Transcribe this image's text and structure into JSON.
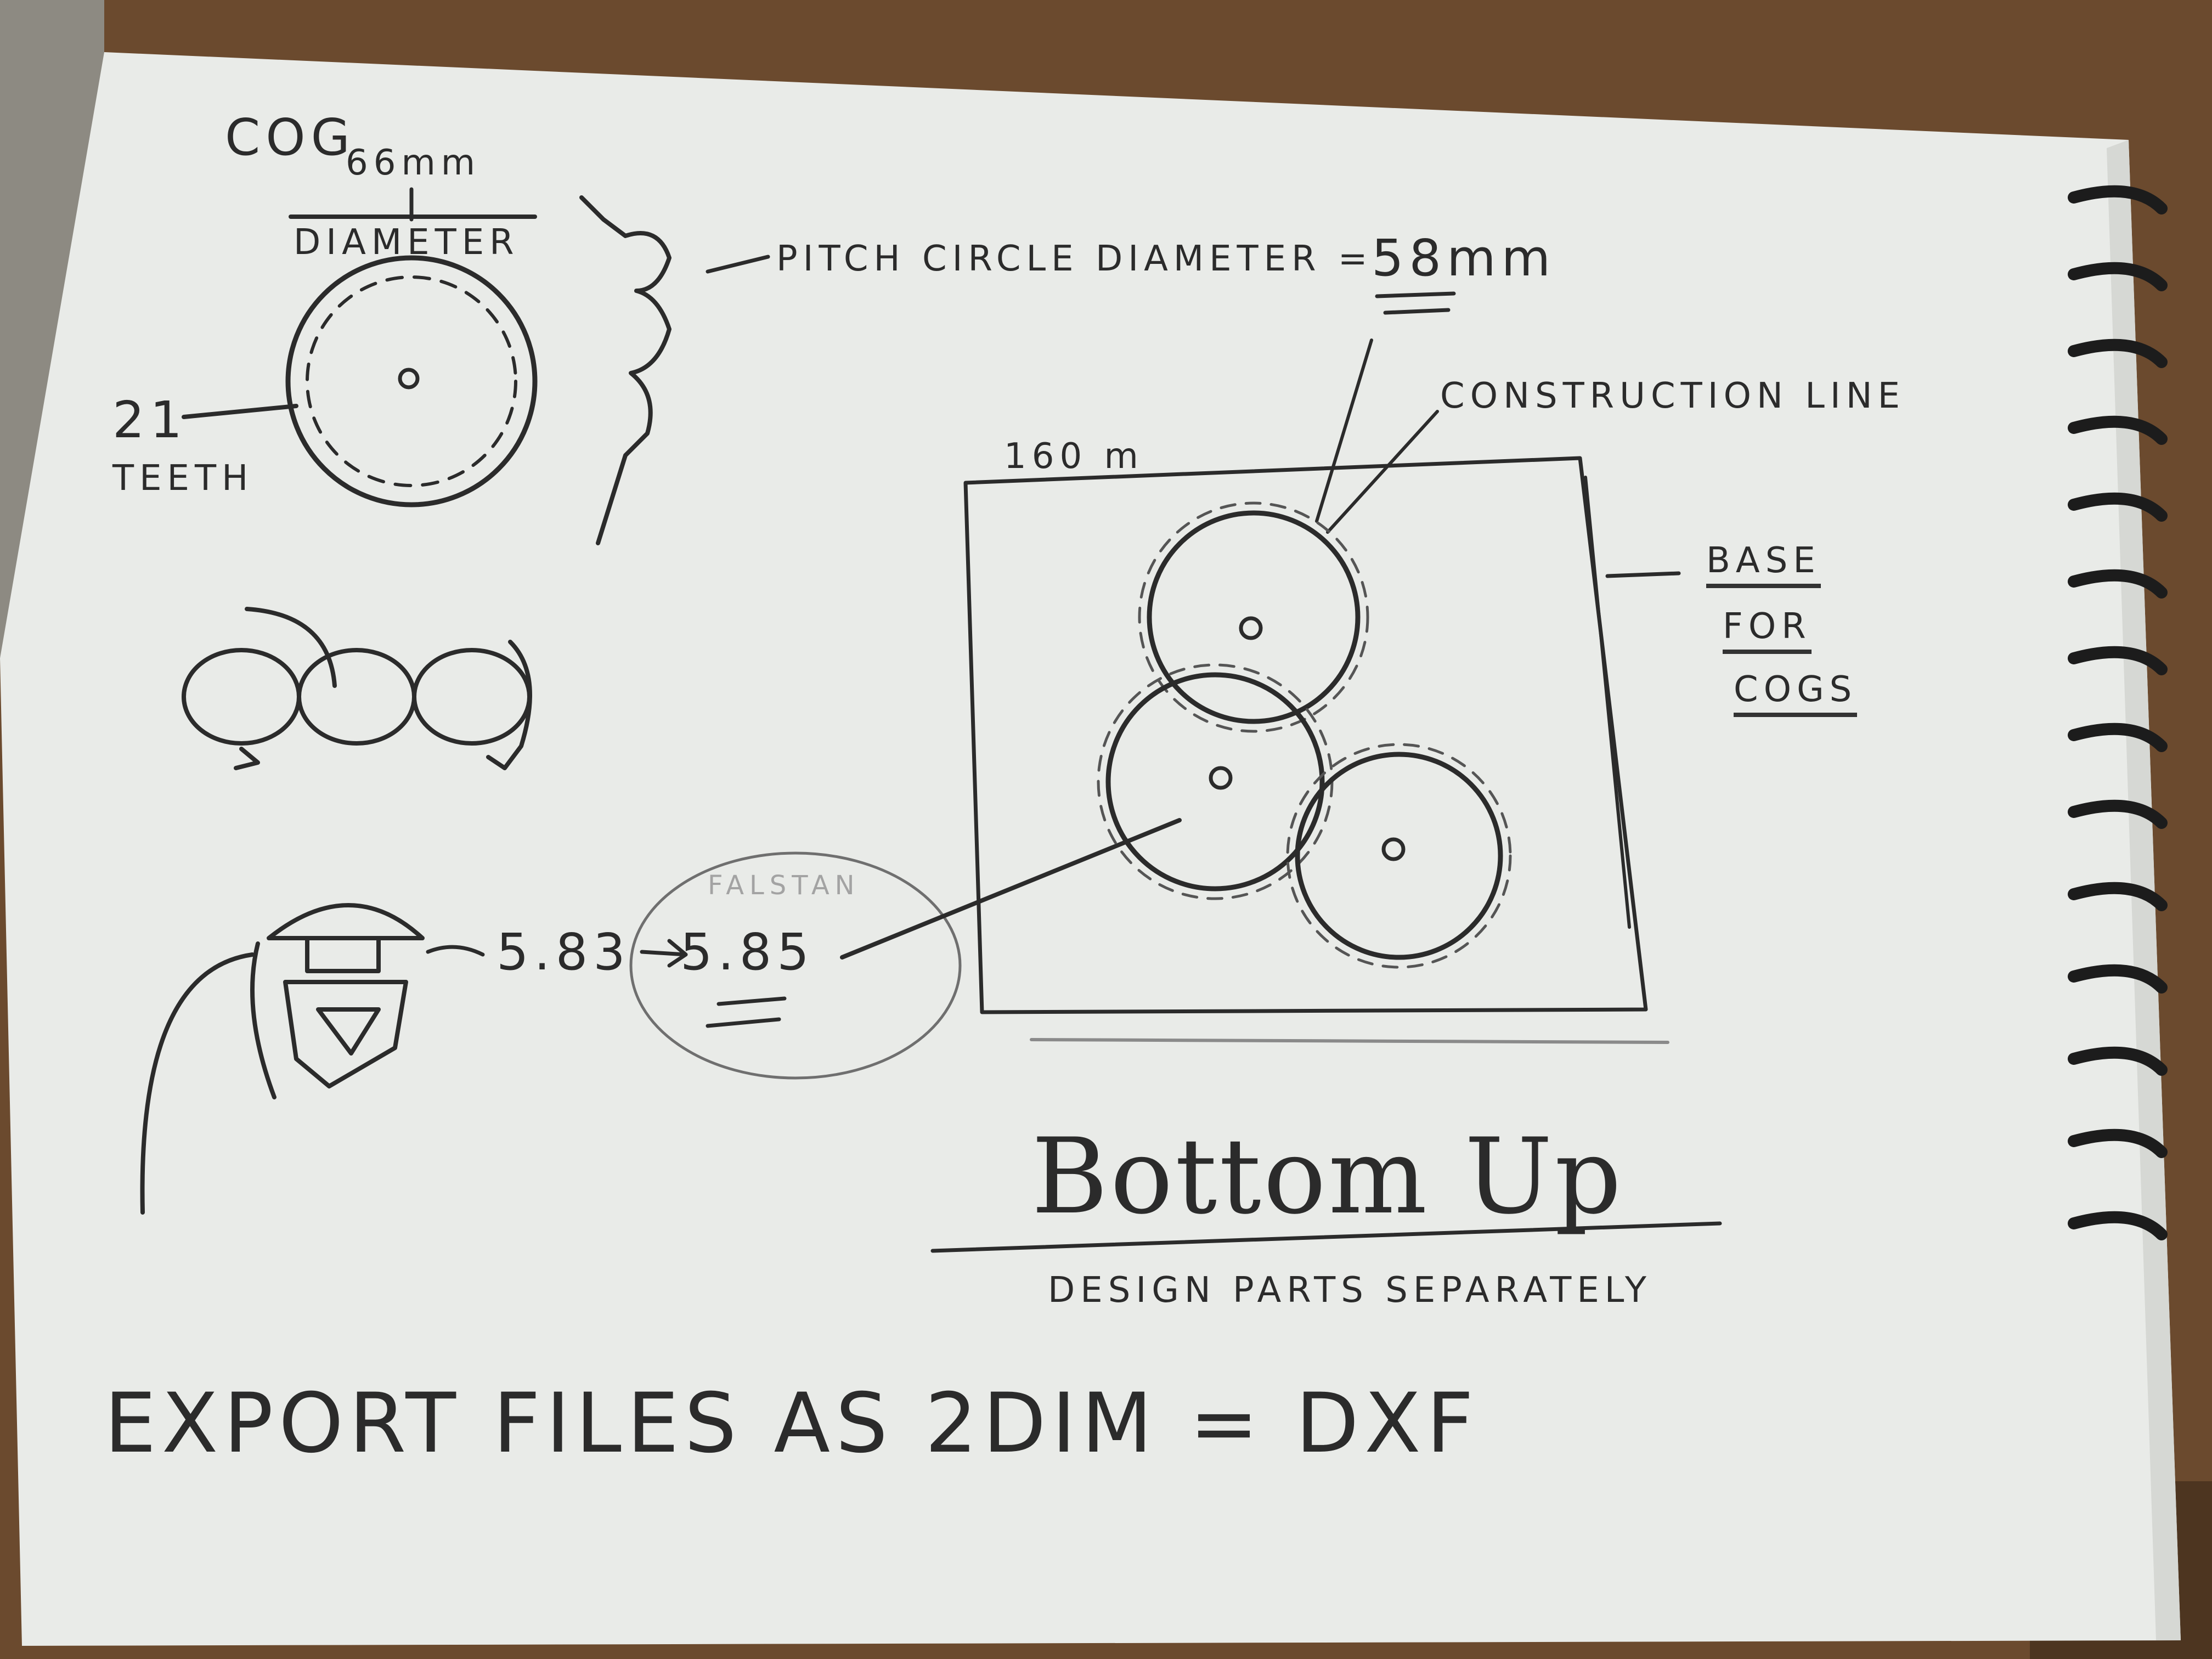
{
  "sketch": {
    "cog_title": "COG",
    "cog_size": "66mm",
    "diameter_label": "DIAMETER",
    "teeth_count": "21",
    "teeth_label": "TEETH",
    "pitch_label": "PITCH CIRCLE DIAMETER =",
    "pitch_value": "58mm",
    "construction_label": "CONSTRUCTION LINE",
    "plate_size": "160 m",
    "base_line1": "BASE",
    "base_line2": "FOR",
    "base_line3": "COGS",
    "value_a": "5.83",
    "value_b": "5.85",
    "faded_note": "FALSTAN",
    "heading": "Bottom Up",
    "subheading": "DESIGN PARTS SEPARATELY",
    "footer_note": "EXPORT FILES AS 2DIM = DXF"
  },
  "colors": {
    "paper": "#e9ebe8",
    "pencil": "#2b2b2b",
    "table": "#6b4a2e",
    "binding": "#1c1c1c"
  }
}
